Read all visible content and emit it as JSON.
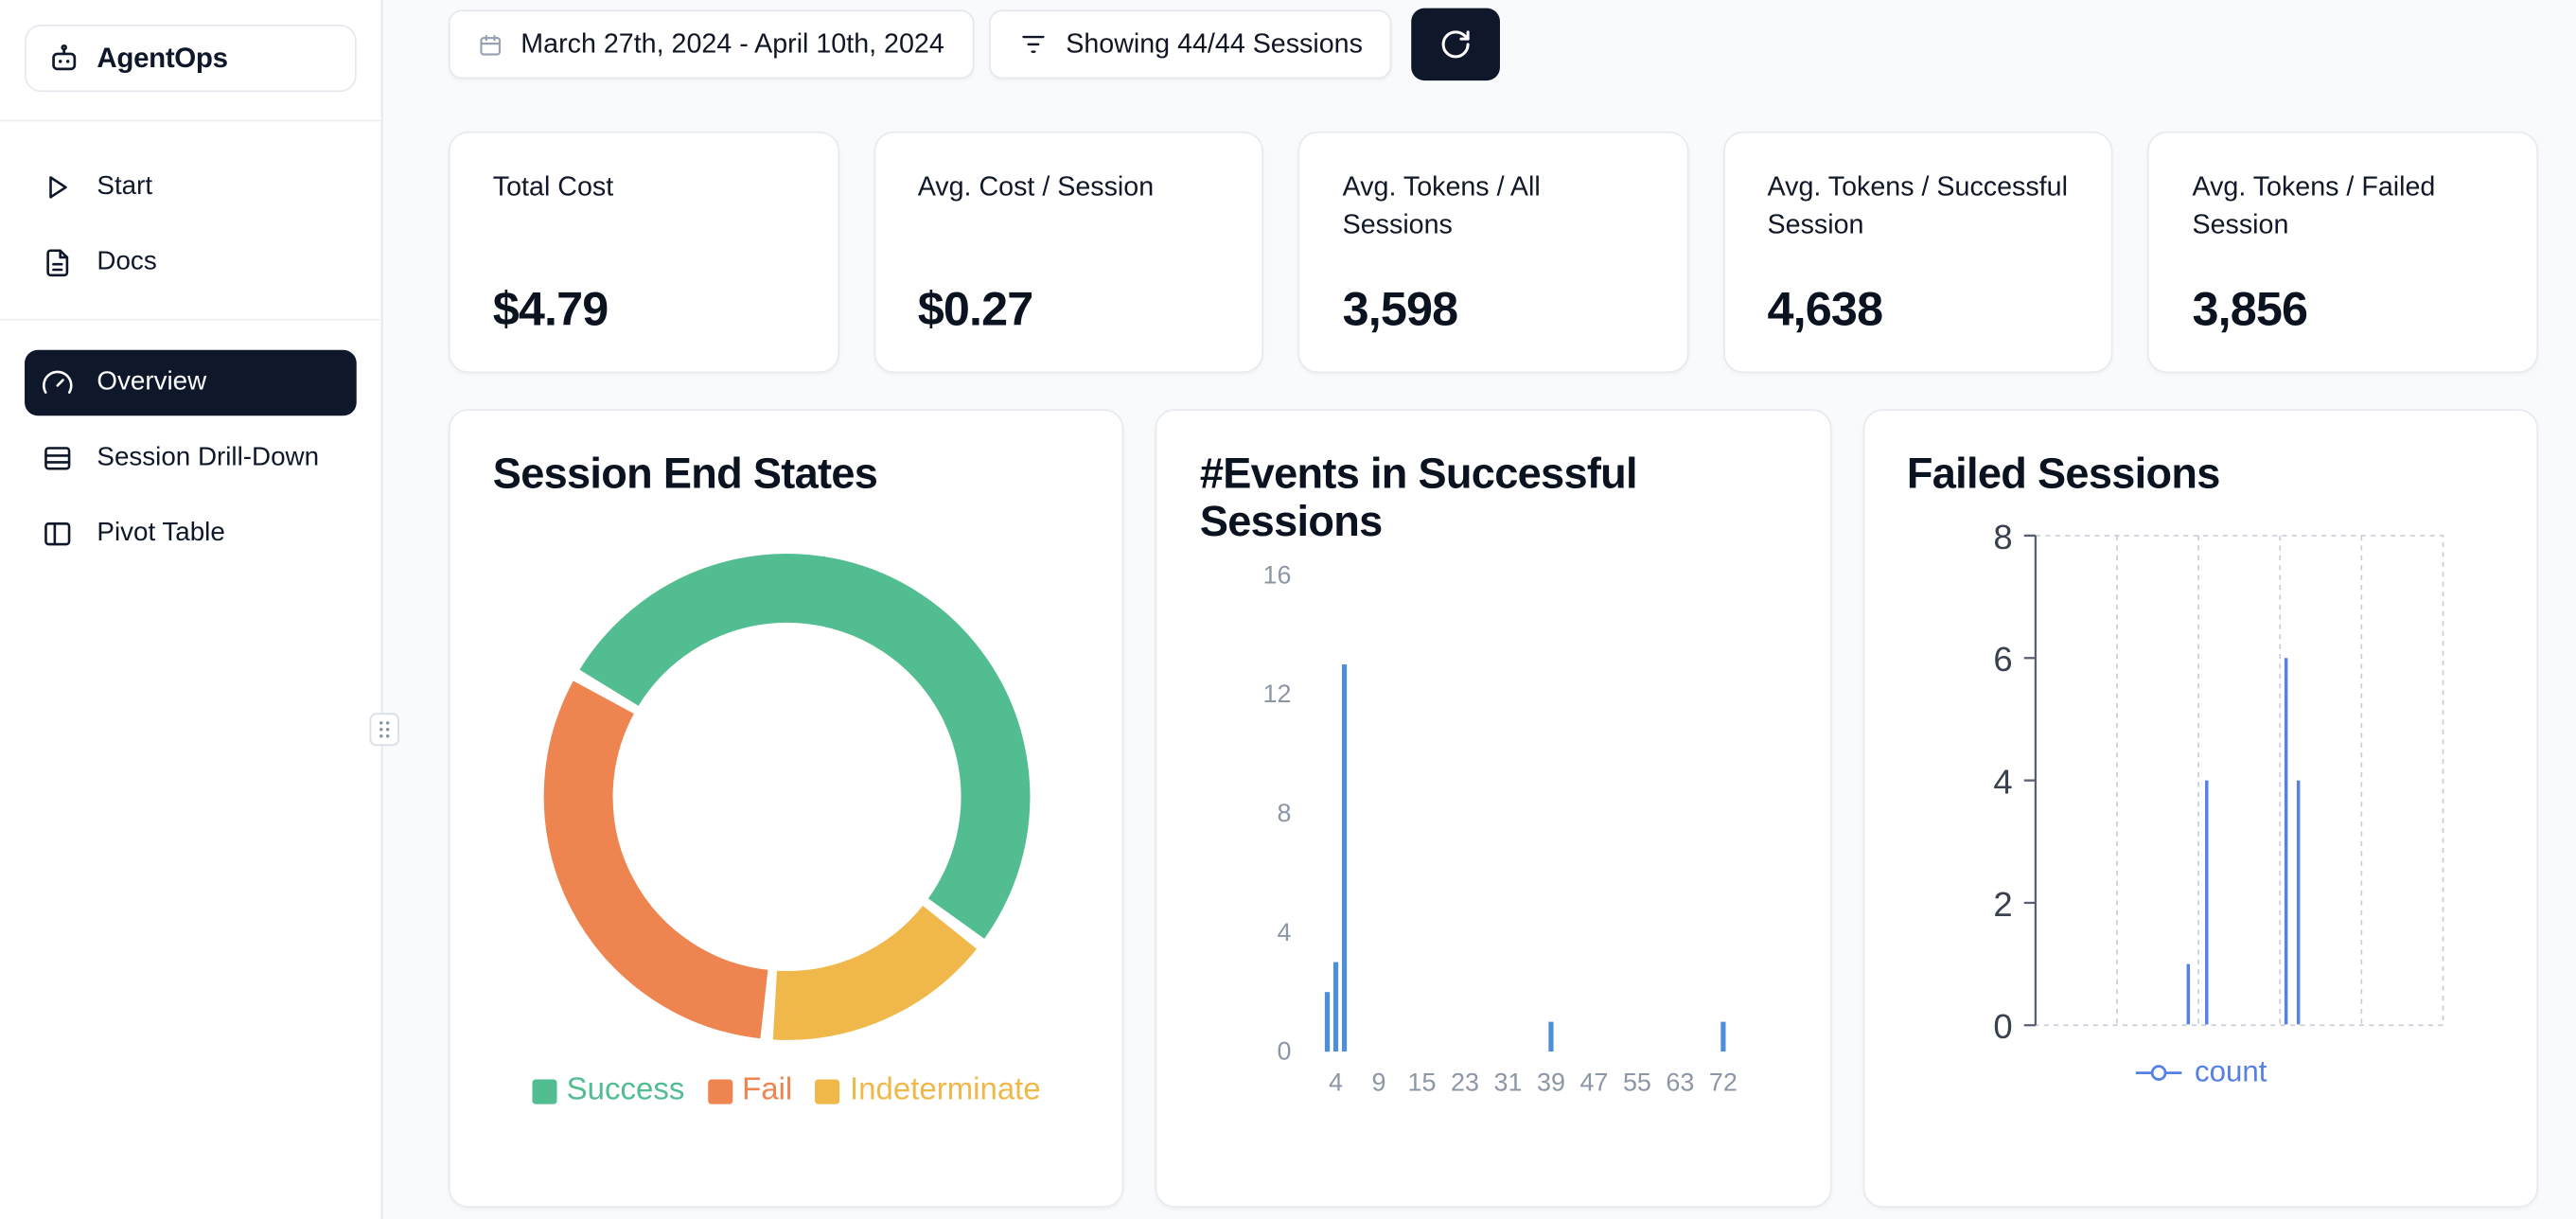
{
  "app": {
    "name": "AgentOps"
  },
  "sidebar": {
    "items": [
      {
        "label": "Start"
      },
      {
        "label": "Docs"
      },
      {
        "label": "Overview",
        "active": true
      },
      {
        "label": "Session Drill-Down"
      },
      {
        "label": "Pivot Table"
      }
    ]
  },
  "toolbar": {
    "date_range": "March 27th, 2024 - April 10th, 2024",
    "sessions_filter": "Showing 44/44 Sessions"
  },
  "stats": [
    {
      "label": "Total Cost",
      "value": "$4.79"
    },
    {
      "label": "Avg. Cost / Session",
      "value": "$0.27"
    },
    {
      "label": "Avg. Tokens / All Sessions",
      "value": "3,598"
    },
    {
      "label": "Avg. Tokens / Successful Session",
      "value": "4,638"
    },
    {
      "label": "Avg. Tokens / Failed Session",
      "value": "3,856"
    }
  ],
  "colors": {
    "accent_dark": "#0f172a",
    "success": "#52bd90",
    "fail": "#ee8450",
    "indeterminate": "#f0b84b",
    "bar_blue": "#4d8edb",
    "line_blue": "#5580e4",
    "page_bg": "#f8fafc"
  },
  "chart_data": [
    {
      "id": "session-end-states",
      "type": "pie",
      "title": "Session End States",
      "donut": true,
      "start_angle_deg": -60,
      "segments": [
        {
          "label": "Success",
          "percent": 52,
          "color": "#52bd90"
        },
        {
          "label": "Indeterminate",
          "percent": 16,
          "color": "#f0b84b"
        },
        {
          "label": "Fail",
          "percent": 32,
          "color": "#ee8450"
        }
      ],
      "legend": [
        {
          "label": "Success",
          "color": "#52bd90"
        },
        {
          "label": "Fail",
          "color": "#ee8450"
        },
        {
          "label": "Indeterminate",
          "color": "#f0b84b"
        }
      ],
      "legend_position": "bottom"
    },
    {
      "id": "events-in-successful-sessions",
      "type": "bar",
      "title": "#Events in Successful Sessions",
      "x_ticks": [
        4,
        9,
        15,
        23,
        31,
        39,
        47,
        55,
        63,
        72
      ],
      "y_ticks": [
        0,
        4,
        8,
        12,
        16
      ],
      "ylim": [
        0,
        16
      ],
      "grid": false,
      "bar_color": "#4d8edb",
      "bars": [
        {
          "x": 3,
          "count": 2
        },
        {
          "x": 4,
          "count": 3
        },
        {
          "x": 5,
          "count": 13
        },
        {
          "x": 39,
          "count": 1
        },
        {
          "x": 72,
          "count": 1
        }
      ]
    },
    {
      "id": "failed-sessions",
      "type": "line",
      "title": "Failed Sessions",
      "y_ticks": [
        0,
        2,
        4,
        6,
        8
      ],
      "ylim": [
        0,
        8
      ],
      "grid": "dashed",
      "series": [
        {
          "name": "count",
          "color": "#5580e4",
          "points": [
            {
              "x_frac": 0.375,
              "value": 1
            },
            {
              "x_frac": 0.42,
              "value": 4
            },
            {
              "x_frac": 0.615,
              "value": 6
            },
            {
              "x_frac": 0.645,
              "value": 4
            }
          ]
        }
      ],
      "legend": {
        "label": "count",
        "position": "bottom"
      }
    }
  ]
}
